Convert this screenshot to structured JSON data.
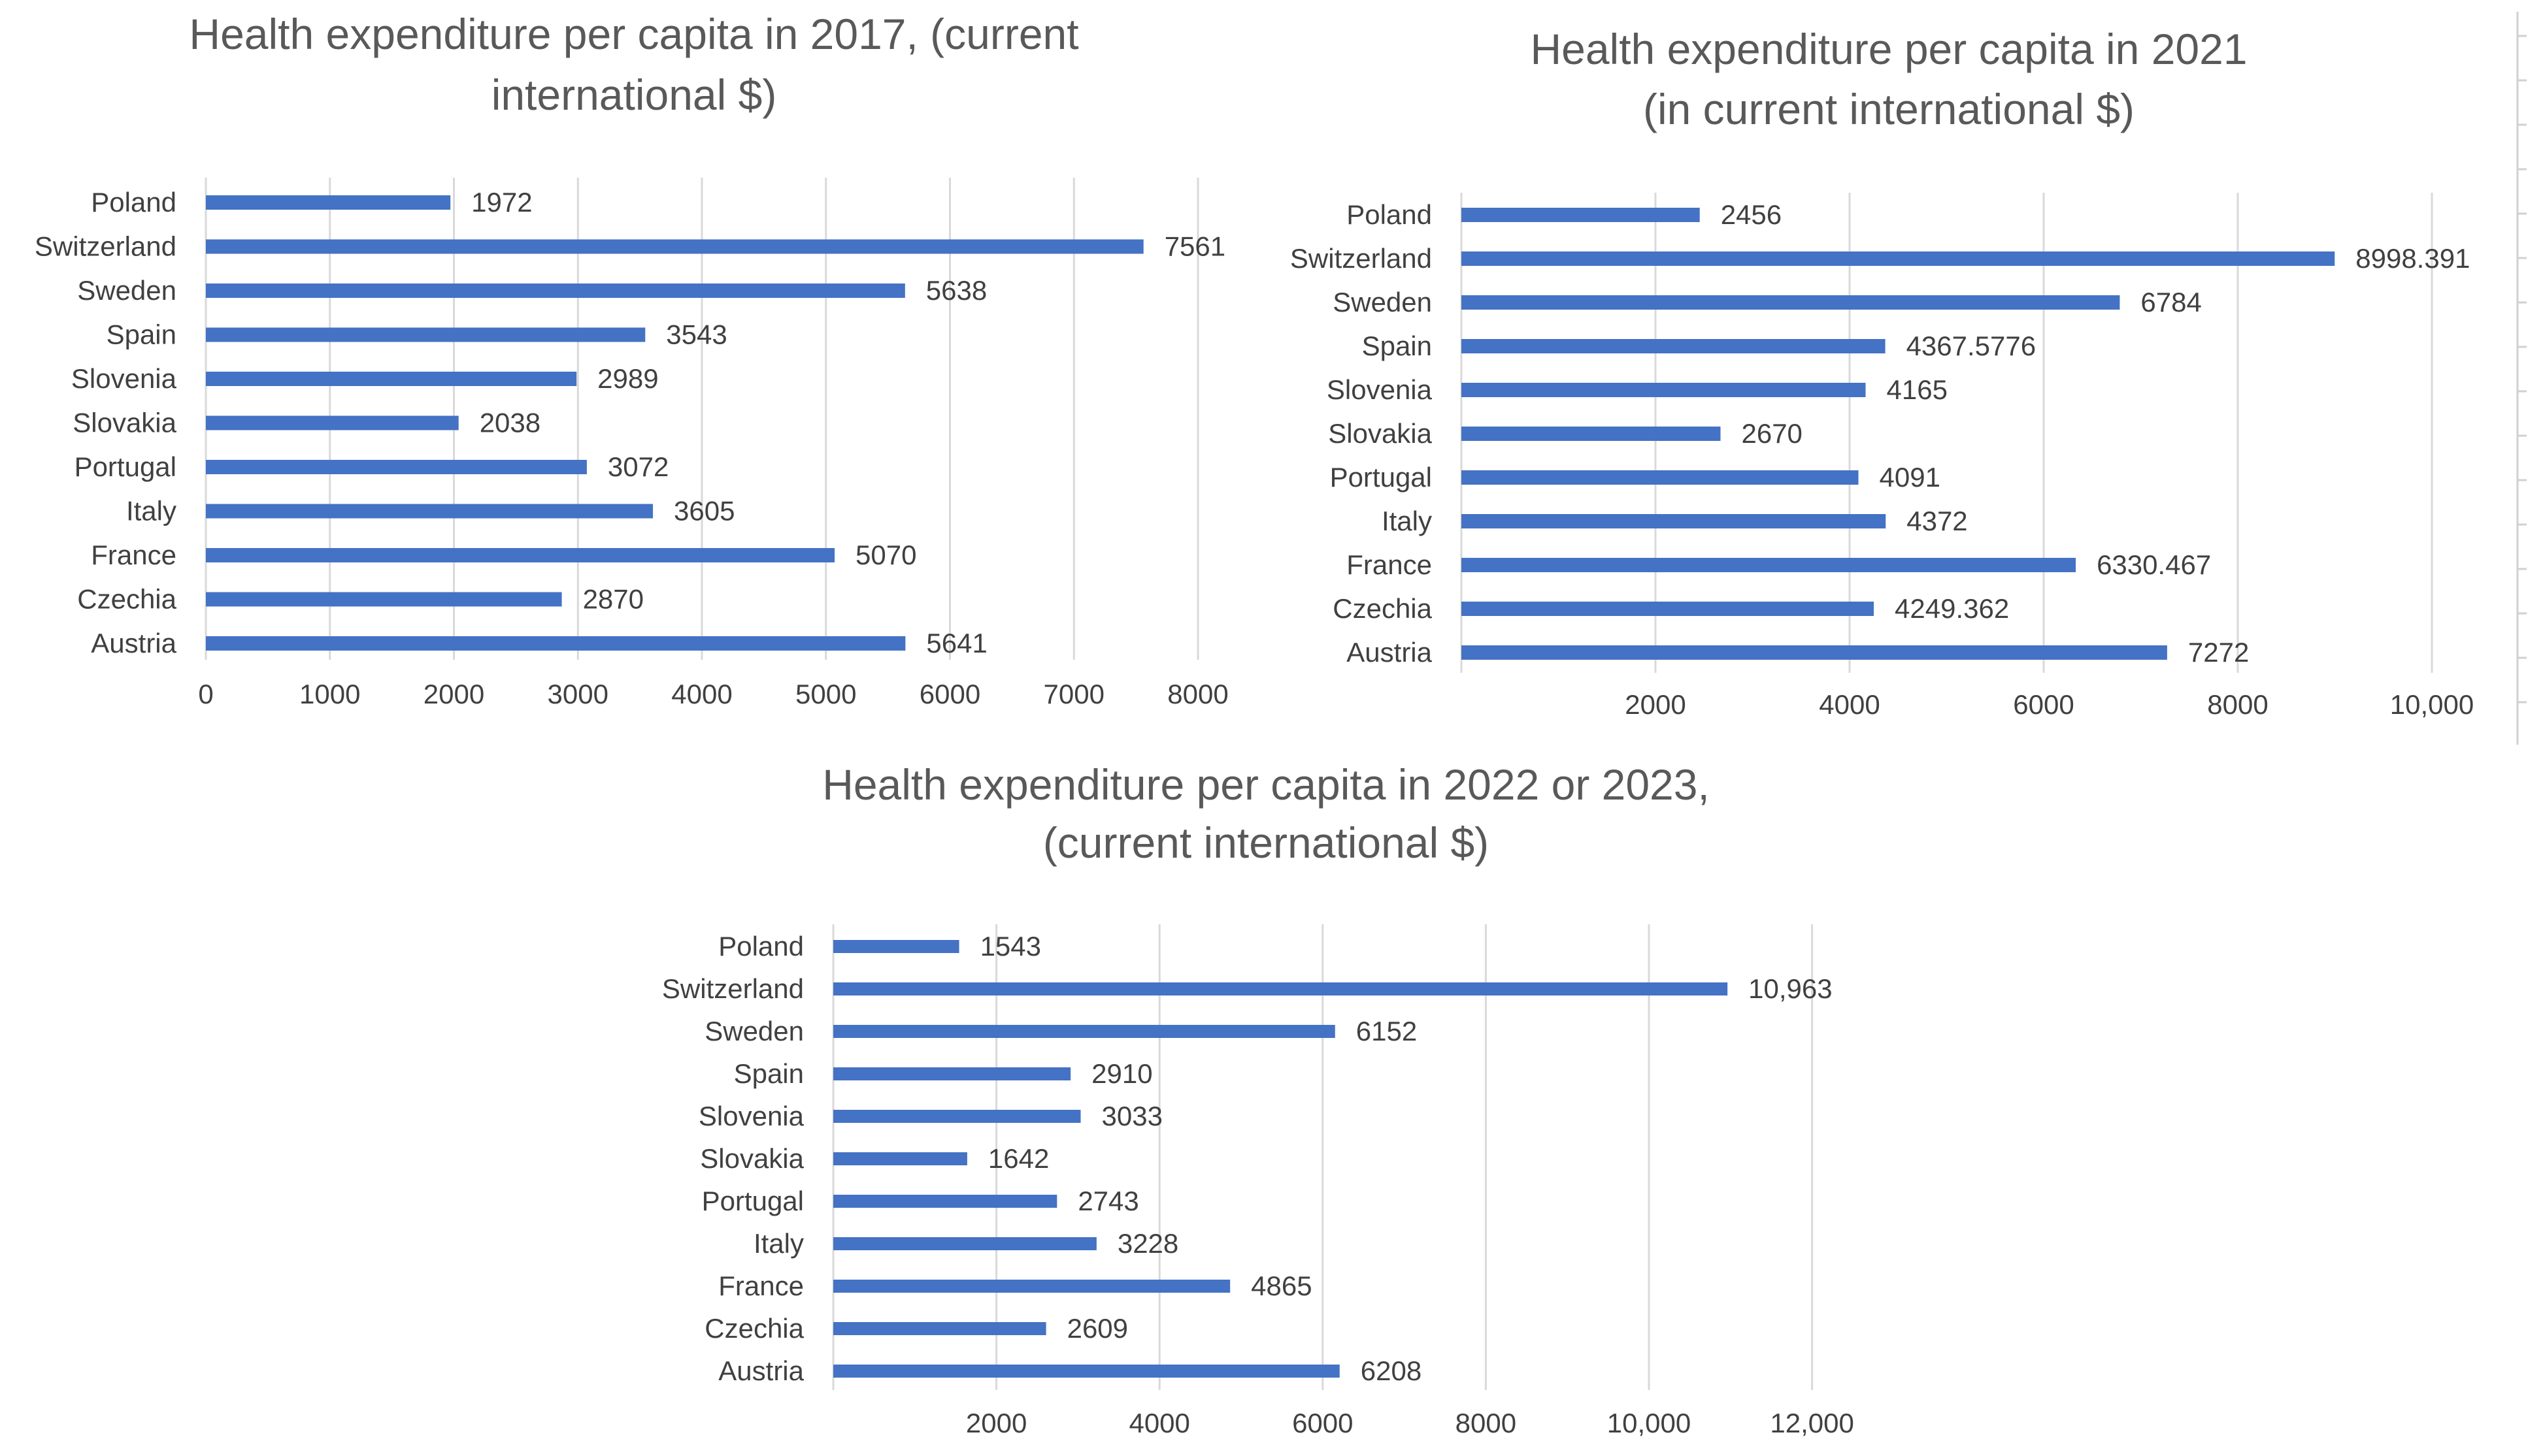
{
  "colors": {
    "bar": "#4472c4",
    "grid": "#d9d9d9",
    "text": "#404040",
    "title": "#595959"
  },
  "chart_data": [
    {
      "type": "bar",
      "orientation": "horizontal",
      "title": [
        "Health expenditure per capita in 2017, (current",
        "international $)"
      ],
      "categories": [
        "Poland",
        "Switzerland",
        "Sweden",
        "Spain",
        "Slovenia",
        "Slovakia",
        "Portugal",
        "Italy",
        "France",
        "Czechia",
        "Austria"
      ],
      "values": [
        1972,
        7561,
        5638,
        3543,
        2989,
        2038,
        3072,
        3605,
        5070,
        2870,
        5641
      ],
      "value_labels": [
        "1972",
        "7561",
        "5638",
        "3543",
        "2989",
        "2038",
        "3072",
        "3605",
        "5070",
        "2870",
        "5641"
      ],
      "xlim": [
        0,
        8000
      ],
      "xticks": [
        0,
        1000,
        2000,
        3000,
        4000,
        5000,
        6000,
        7000,
        8000
      ],
      "xtick_labels": [
        "0",
        "1000",
        "2000",
        "3000",
        "4000",
        "5000",
        "6000",
        "7000",
        "8000"
      ],
      "gridlines": true,
      "xlabel": "",
      "ylabel": ""
    },
    {
      "type": "bar",
      "orientation": "horizontal",
      "title": [
        "Health expenditure per capita in 2021",
        "(in current international $)"
      ],
      "categories": [
        "Poland",
        "Switzerland",
        "Sweden",
        "Spain",
        "Slovenia",
        "Slovakia",
        "Portugal",
        "Italy",
        "France",
        "Czechia",
        "Austria"
      ],
      "values": [
        2456,
        8998.391,
        6784,
        4367.5776,
        4165,
        2670,
        4091,
        4372,
        6330.467,
        4249.362,
        7272
      ],
      "value_labels": [
        "2456",
        "8998.391",
        "6784",
        "4367.5776",
        "4165",
        "2670",
        "4091",
        "4372",
        "6330.467",
        "4249.362",
        "7272"
      ],
      "xlim": [
        0,
        10000
      ],
      "xticks": [
        2000,
        4000,
        6000,
        8000,
        10000
      ],
      "xtick_labels": [
        "2000",
        "4000",
        "6000",
        "8000",
        "10,000"
      ],
      "gridlines": true,
      "xlabel": "",
      "ylabel": ""
    },
    {
      "type": "bar",
      "orientation": "horizontal",
      "title": [
        "Health expenditure per capita in 2022 or 2023,",
        "(current international $)"
      ],
      "categories": [
        "Poland",
        "Switzerland",
        "Sweden",
        "Spain",
        "Slovenia",
        "Slovakia",
        "Portugal",
        "Italy",
        "France",
        "Czechia",
        "Austria"
      ],
      "values": [
        1543,
        10963,
        6152,
        2910,
        3033,
        1642,
        2743,
        3228,
        4865,
        2609,
        6208
      ],
      "value_labels": [
        "1543",
        "10,963",
        "6152",
        "2910",
        "3033",
        "1642",
        "2743",
        "3228",
        "4865",
        "2609",
        "6208"
      ],
      "xlim": [
        0,
        12000
      ],
      "xticks": [
        2000,
        4000,
        6000,
        8000,
        10000,
        12000
      ],
      "xtick_labels": [
        "2000",
        "4000",
        "6000",
        "8000",
        "10,000",
        "12,000"
      ],
      "gridlines": true,
      "xlabel": "",
      "ylabel": ""
    }
  ]
}
